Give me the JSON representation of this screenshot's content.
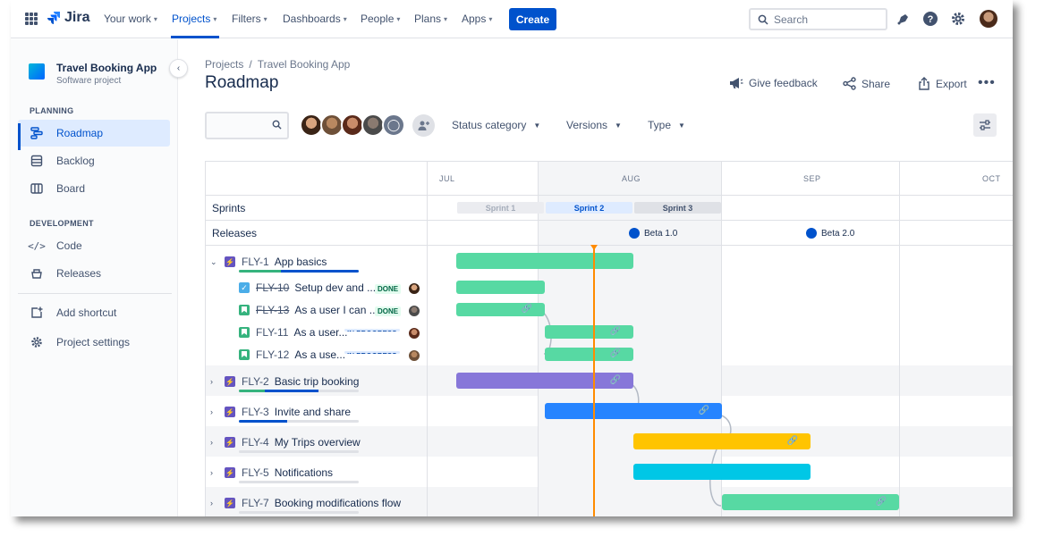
{
  "topnav": {
    "product": "Jira",
    "items": [
      {
        "label": "Your work"
      },
      {
        "label": "Projects"
      },
      {
        "label": "Filters"
      },
      {
        "label": "Dashboards"
      },
      {
        "label": "People"
      },
      {
        "label": "Plans"
      },
      {
        "label": "Apps"
      }
    ],
    "create_label": "Create",
    "search_placeholder": "Search"
  },
  "sidebar": {
    "project_name": "Travel Booking App",
    "project_type": "Software project",
    "planning_heading": "PLANNING",
    "planning_items": [
      {
        "label": "Roadmap",
        "icon": "roadmap-icon",
        "active": true
      },
      {
        "label": "Backlog",
        "icon": "backlog-icon"
      },
      {
        "label": "Board",
        "icon": "board-icon"
      }
    ],
    "development_heading": "DEVELOPMENT",
    "development_items": [
      {
        "label": "Code",
        "icon": "code-icon"
      },
      {
        "label": "Releases",
        "icon": "releases-icon"
      }
    ],
    "footer_items": [
      {
        "label": "Add shortcut",
        "icon": "add-shortcut-icon"
      },
      {
        "label": "Project settings",
        "icon": "gear-icon"
      }
    ]
  },
  "header": {
    "breadcrumb": [
      "Projects",
      "/",
      "Travel Booking App"
    ],
    "title": "Roadmap",
    "actions": [
      {
        "label": "Give feedback",
        "icon": "megaphone-icon"
      },
      {
        "label": "Share",
        "icon": "share-icon"
      },
      {
        "label": "Export",
        "icon": "export-icon"
      }
    ]
  },
  "filters": {
    "dropdowns": [
      {
        "label": "Status category"
      },
      {
        "label": "Versions"
      },
      {
        "label": "Type"
      }
    ]
  },
  "roadmap": {
    "months": [
      "JUL",
      "AUG",
      "SEP",
      "OCT"
    ],
    "sprints_label": "Sprints",
    "releases_label": "Releases",
    "sprints": [
      {
        "label": "Sprint 1",
        "state": "past"
      },
      {
        "label": "Sprint 2",
        "state": "active"
      },
      {
        "label": "Sprint 3",
        "state": "future"
      }
    ],
    "releases": [
      {
        "label": "Beta 1.0"
      },
      {
        "label": "Beta 2.0"
      }
    ],
    "epics": [
      {
        "key": "FLY-1",
        "title": "App basics",
        "expanded": true,
        "progress_done": 0.35,
        "progress_inprogress": 0.65,
        "children": [
          {
            "key": "FLY-10",
            "title": "Setup dev and ...",
            "type": "task",
            "status": "DONE"
          },
          {
            "key": "FLY-13",
            "title": "As a user I can ...",
            "type": "story",
            "status": "DONE"
          },
          {
            "key": "FLY-11",
            "title": "As a user...",
            "type": "story",
            "status": "IN PROGRESS"
          },
          {
            "key": "FLY-12",
            "title": "As a use...",
            "type": "story",
            "status": "IN PROGRESS"
          }
        ]
      },
      {
        "key": "FLY-2",
        "title": "Basic trip booking",
        "expanded": false,
        "progress_done": 0.22,
        "progress_inprogress": 0.45
      },
      {
        "key": "FLY-3",
        "title": "Invite and share",
        "expanded": false,
        "progress_done": 0,
        "progress_inprogress": 0.4
      },
      {
        "key": "FLY-4",
        "title": "My Trips overview",
        "expanded": false,
        "progress_done": 0,
        "progress_inprogress": 0
      },
      {
        "key": "FLY-5",
        "title": "Notifications",
        "expanded": false,
        "progress_done": 0,
        "progress_inprogress": 0
      },
      {
        "key": "FLY-7",
        "title": "Booking modifications flow",
        "expanded": false,
        "progress_done": 0,
        "progress_inprogress": 0
      }
    ]
  },
  "colors": {
    "brand": "#0052cc",
    "bar_green": "#57d9a3",
    "bar_purple": "#8777d9",
    "bar_blue": "#2684ff",
    "bar_yellow": "#ffc400",
    "bar_teal": "#00c7e6",
    "today_line": "#ff8b00"
  }
}
